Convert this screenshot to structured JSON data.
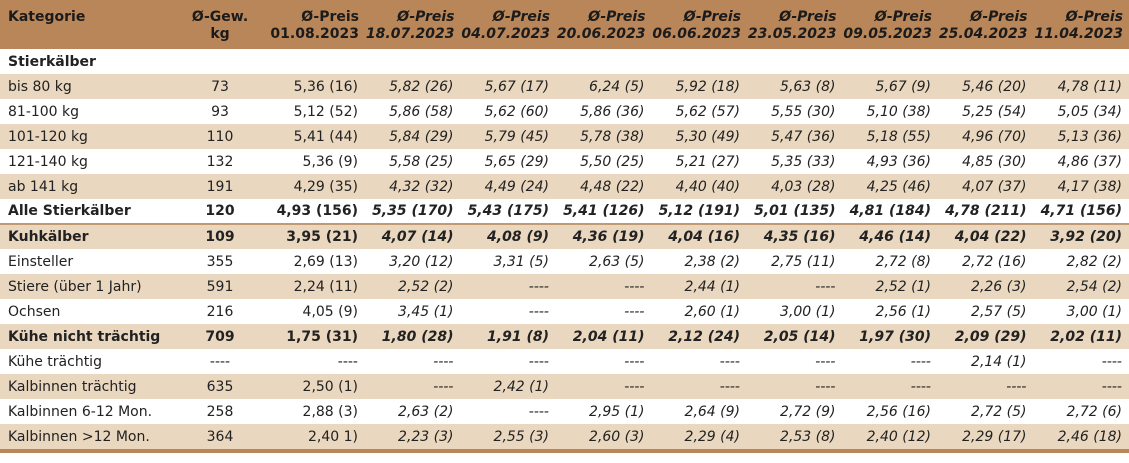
{
  "header": {
    "kategorie": "Kategorie",
    "gew_line1": "Ø-Gew.",
    "gew_line2": "kg",
    "preis_label": "Ø-Preis",
    "dates": [
      "01.08.2023",
      "18.07.2023",
      "04.07.2023",
      "20.06.2023",
      "06.06.2023",
      "23.05.2023",
      "09.05.2023",
      "25.04.2023",
      "11.04.2023"
    ]
  },
  "colors": {
    "header_bg": "#b9865a",
    "row_shade": "#ead7bf",
    "row_white": "#ffffff"
  },
  "rows": [
    {
      "label": "Stierkälber",
      "weight": "",
      "prices": [
        "",
        "",
        "",
        "",
        "",
        "",
        "",
        "",
        ""
      ]
    },
    {
      "label": "bis 80 kg",
      "weight": "73",
      "prices": [
        "5,36 (16)",
        "5,82 (26)",
        "5,67 (17)",
        "6,24 (5)",
        "5,92 (18)",
        "5,63 (8)",
        "5,67 (9)",
        "5,46 (20)",
        "4,78 (11)"
      ]
    },
    {
      "label": "81-100 kg",
      "weight": "93",
      "prices": [
        "5,12 (52)",
        "5,86 (58)",
        "5,62 (60)",
        "5,86 (36)",
        "5,62 (57)",
        "5,55 (30)",
        "5,10 (38)",
        "5,25 (54)",
        "5,05 (34)"
      ]
    },
    {
      "label": "101-120 kg",
      "weight": "110",
      "prices": [
        "5,41 (44)",
        "5,84 (29)",
        "5,79 (45)",
        "5,78 (38)",
        "5,30 (49)",
        "5,47 (36)",
        "5,18 (55)",
        "4,96 (70)",
        "5,13 (36)"
      ]
    },
    {
      "label": "121-140 kg",
      "weight": "132",
      "prices": [
        "5,36 (9)",
        "5,58 (25)",
        "5,65 (29)",
        "5,50 (25)",
        "5,21 (27)",
        "5,35 (33)",
        "4,93 (36)",
        "4,85 (30)",
        "4,86 (37)"
      ]
    },
    {
      "label": "ab 141 kg",
      "weight": "191",
      "prices": [
        "4,29 (35)",
        "4,32 (32)",
        "4,49 (24)",
        "4,48 (22)",
        "4,40 (40)",
        "4,03 (28)",
        "4,25 (46)",
        "4,07 (37)",
        "4,17 (38)"
      ]
    },
    {
      "label": "Alle Stierkälber",
      "weight": "120",
      "prices": [
        "4,93 (156)",
        "5,35 (170)",
        "5,43 (175)",
        "5,41 (126)",
        "5,12 (191)",
        "5,01 (135)",
        "4,81 (184)",
        "4,78 (211)",
        "4,71 (156)"
      ]
    },
    {
      "label": "Kuhkälber",
      "weight": "109",
      "prices": [
        "3,95 (21)",
        "4,07 (14)",
        "4,08 (9)",
        "4,36 (19)",
        "4,04 (16)",
        "4,35 (16)",
        "4,46 (14)",
        "4,04 (22)",
        "3,92 (20)"
      ]
    },
    {
      "label": "Einsteller",
      "weight": "355",
      "prices": [
        "2,69 (13)",
        "3,20 (12)",
        "3,31 (5)",
        "2,63 (5)",
        "2,38 (2)",
        "2,75 (11)",
        "2,72 (8)",
        "2,72 (16)",
        "2,82 (2)"
      ]
    },
    {
      "label": "Stiere (über 1 Jahr)",
      "weight": "591",
      "prices": [
        "2,24 (11)",
        "2,52 (2)",
        "----",
        "----",
        "2,44 (1)",
        "----",
        "2,52 (1)",
        "2,26 (3)",
        "2,54 (2)"
      ]
    },
    {
      "label": "Ochsen",
      "weight": "216",
      "prices": [
        "4,05 (9)",
        "3,45 (1)",
        "----",
        "----",
        "2,60 (1)",
        "3,00 (1)",
        "2,56 (1)",
        "2,57 (5)",
        "3,00 (1)"
      ]
    },
    {
      "label": "Kühe nicht trächtig",
      "weight": "709",
      "prices": [
        "1,75 (31)",
        "1,80 (28)",
        "1,91 (8)",
        "2,04 (11)",
        "2,12 (24)",
        "2,05 (14)",
        "1,97 (30)",
        "2,09 (29)",
        "2,02 (11)"
      ]
    },
    {
      "label": "Kühe trächtig",
      "weight": "----",
      "prices": [
        "----",
        "----",
        "----",
        "----",
        "----",
        "----",
        "----",
        "2,14 (1)",
        "----"
      ]
    },
    {
      "label": "Kalbinnen trächtig",
      "weight": "635",
      "prices": [
        "2,50 (1)",
        "----",
        "2,42 (1)",
        "----",
        "----",
        "----",
        "----",
        "----",
        "----"
      ]
    },
    {
      "label": "Kalbinnen 6-12 Mon.",
      "weight": "258",
      "prices": [
        "2,88 (3)",
        "2,63 (2)",
        "----",
        "2,95 (1)",
        "2,64 (9)",
        "2,72 (9)",
        "2,56 (16)",
        "2,72 (5)",
        "2,72 (6)"
      ]
    },
    {
      "label": "Kalbinnen >12 Mon.",
      "weight": "364",
      "prices": [
        "2,40 1)",
        "2,23 (3)",
        "2,55 (3)",
        "2,60 (3)",
        "2,29 (4)",
        "2,53 (8)",
        "2,40 (12)",
        "2,29 (17)",
        "2,46 (18)"
      ]
    }
  ]
}
